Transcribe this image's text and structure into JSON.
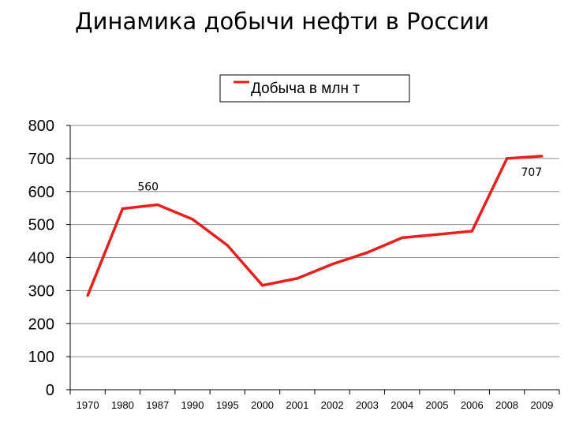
{
  "chart_data": {
    "type": "line",
    "title": "Динамика добычи нефти в России",
    "categories": [
      "1970",
      "1980",
      "1987",
      "1990",
      "1995",
      "2000",
      "2001",
      "2002",
      "2003",
      "2004",
      "2005",
      "2006",
      "2008",
      "2009"
    ],
    "series": [
      {
        "name": "Добыча в млн т",
        "color": "#e8201b",
        "values": [
          285,
          548,
          560,
          516,
          437,
          316,
          337,
          380,
          415,
          460,
          470,
          480,
          700,
          707
        ]
      }
    ],
    "data_labels": [
      {
        "index": 2,
        "text": "560"
      },
      {
        "index": 13,
        "text": "707"
      }
    ],
    "ylim": [
      0,
      800
    ],
    "yticks": [
      "0",
      "100",
      "200",
      "300",
      "400",
      "500",
      "600",
      "700",
      "800"
    ],
    "grid": true,
    "legend_position": "top-right"
  }
}
